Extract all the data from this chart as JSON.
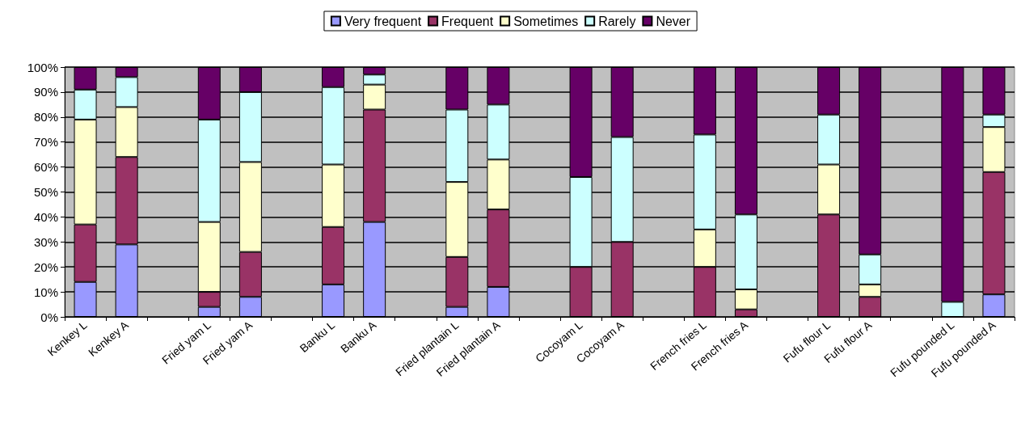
{
  "chart_data": {
    "type": "bar",
    "stacked": true,
    "legend": "top",
    "grid": "y",
    "categories": [
      "Kenkey L",
      "Kenkey A",
      null,
      "Fried yam L",
      "Fried yam A",
      null,
      "Banku L",
      "Banku A",
      null,
      "Fried plantain L",
      "Fried plantain A",
      null,
      "Cocoyam L",
      "Cocoyam A",
      null,
      "French fries L",
      "French fries A",
      null,
      "Fufu flour L",
      "Fufu flour A",
      null,
      "Fufu pounded L",
      "Fufu pounded A"
    ],
    "ylim": [
      0,
      100
    ],
    "yticks": [
      {
        "value": 0,
        "label": "0%"
      },
      {
        "value": 10,
        "label": "10%"
      },
      {
        "value": 20,
        "label": "20%"
      },
      {
        "value": 30,
        "label": "30%"
      },
      {
        "value": 40,
        "label": "40%"
      },
      {
        "value": 50,
        "label": "50%"
      },
      {
        "value": 60,
        "label": "60%"
      },
      {
        "value": 70,
        "label": "70%"
      },
      {
        "value": 80,
        "label": "80%"
      },
      {
        "value": 90,
        "label": "90%"
      },
      {
        "value": 100,
        "label": "100%"
      }
    ],
    "series": [
      {
        "name": "Very frequent",
        "color": "#9999ff",
        "values": [
          14,
          29,
          null,
          4,
          8,
          null,
          13,
          38,
          null,
          4,
          12,
          null,
          0,
          0,
          null,
          0,
          0,
          null,
          0,
          0,
          null,
          0,
          9
        ]
      },
      {
        "name": "Frequent",
        "color": "#993366",
        "values": [
          23,
          35,
          null,
          6,
          18,
          null,
          23,
          45,
          null,
          20,
          31,
          null,
          20,
          30,
          null,
          20,
          3,
          null,
          41,
          8,
          null,
          0,
          49
        ]
      },
      {
        "name": "Sometimes",
        "color": "#ffffcc",
        "values": [
          42,
          20,
          null,
          28,
          36,
          null,
          25,
          10,
          null,
          30,
          20,
          null,
          0,
          0,
          null,
          15,
          8,
          null,
          20,
          5,
          null,
          0,
          18
        ]
      },
      {
        "name": "Rarely",
        "color": "#ccffff",
        "values": [
          12,
          12,
          null,
          41,
          28,
          null,
          31,
          4,
          null,
          29,
          22,
          null,
          36,
          42,
          null,
          38,
          30,
          null,
          20,
          12,
          null,
          6,
          5
        ]
      },
      {
        "name": "Never",
        "color": "#660066",
        "values": [
          9,
          4,
          null,
          21,
          10,
          null,
          8,
          3,
          null,
          17,
          15,
          null,
          44,
          28,
          null,
          27,
          59,
          null,
          19,
          75,
          null,
          94,
          19
        ]
      }
    ]
  }
}
